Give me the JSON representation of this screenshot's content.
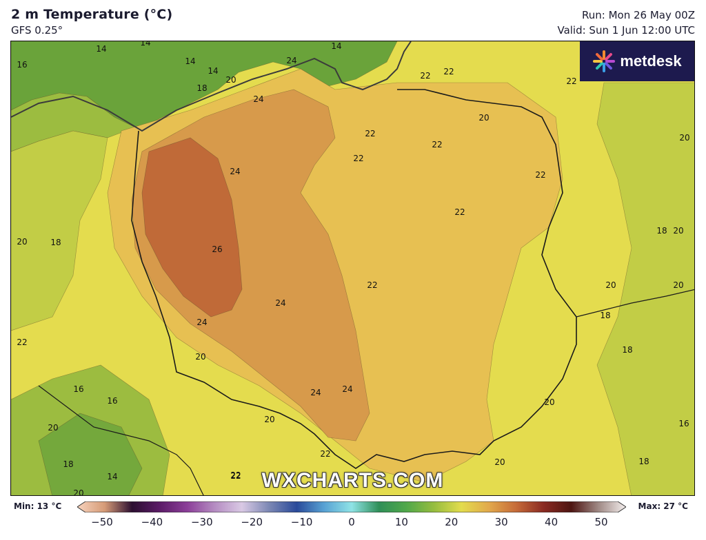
{
  "header": {
    "title": "2 m Temperature (°C)",
    "model": "GFS 0.25°",
    "run": "Run: Mon 26 May 00Z",
    "valid": "Valid: Sun 1 Jun 12:00 UTC"
  },
  "logo": {
    "text": "metdesk"
  },
  "watermark": "WXCHARTS.COM",
  "map": {
    "region_shown": "Poland and surrounding countries",
    "colors": {
      "t14": "#74a83c",
      "t16": "#9cbc40",
      "t18": "#c2cd46",
      "t20": "#e4dc4e",
      "t22": "#e7c052",
      "t24": "#d79a4b",
      "t26": "#c06a38",
      "border": "#1a1a1a",
      "coast": "#3b3b3b",
      "sea": "#6aa33a"
    },
    "isotherm_labels": [
      "14",
      "14",
      "14",
      "16",
      "14",
      "18",
      "20",
      "24",
      "14",
      "22",
      "22",
      "22",
      "24",
      "20",
      "22",
      "22",
      "22",
      "20",
      "24",
      "22",
      "22",
      "20",
      "18",
      "18",
      "20",
      "26",
      "22",
      "20",
      "20",
      "24",
      "18",
      "24",
      "22",
      "18",
      "20",
      "16",
      "16",
      "24",
      "24",
      "20",
      "16",
      "20",
      "20",
      "22",
      "22",
      "18",
      "20",
      "14",
      "22",
      "20",
      "18"
    ]
  },
  "legend": {
    "min_label": "Min: 13 °C",
    "max_label": "Max: 27 °C",
    "ticks": [
      "−50",
      "−40",
      "−30",
      "−20",
      "−10",
      "0",
      "10",
      "20",
      "30",
      "40",
      "50"
    ],
    "range": [
      -50,
      50
    ],
    "gradient_stops": [
      {
        "value": -50,
        "color": "#f7d3bd"
      },
      {
        "value": -45,
        "color": "#d69b77"
      },
      {
        "value": -40,
        "color": "#2c0f31"
      },
      {
        "value": -35,
        "color": "#5b1b67"
      },
      {
        "value": -30,
        "color": "#8b3e98"
      },
      {
        "value": -25,
        "color": "#b58cc2"
      },
      {
        "value": -20,
        "color": "#d9c9e4"
      },
      {
        "value": -15,
        "color": "#7b87b4"
      },
      {
        "value": -10,
        "color": "#2a4a9a"
      },
      {
        "value": -5,
        "color": "#58a2d4"
      },
      {
        "value": 0,
        "color": "#8fe3e6"
      },
      {
        "value": 5,
        "color": "#2f8f58"
      },
      {
        "value": 10,
        "color": "#50a84a"
      },
      {
        "value": 15,
        "color": "#96bd3f"
      },
      {
        "value": 20,
        "color": "#e3dc4d"
      },
      {
        "value": 25,
        "color": "#e2a94c"
      },
      {
        "value": 30,
        "color": "#c66b39"
      },
      {
        "value": 35,
        "color": "#8a2a22"
      },
      {
        "value": 40,
        "color": "#4e1512"
      },
      {
        "value": 45,
        "color": "#a08a86"
      },
      {
        "value": 50,
        "color": "#f4efee"
      }
    ]
  }
}
